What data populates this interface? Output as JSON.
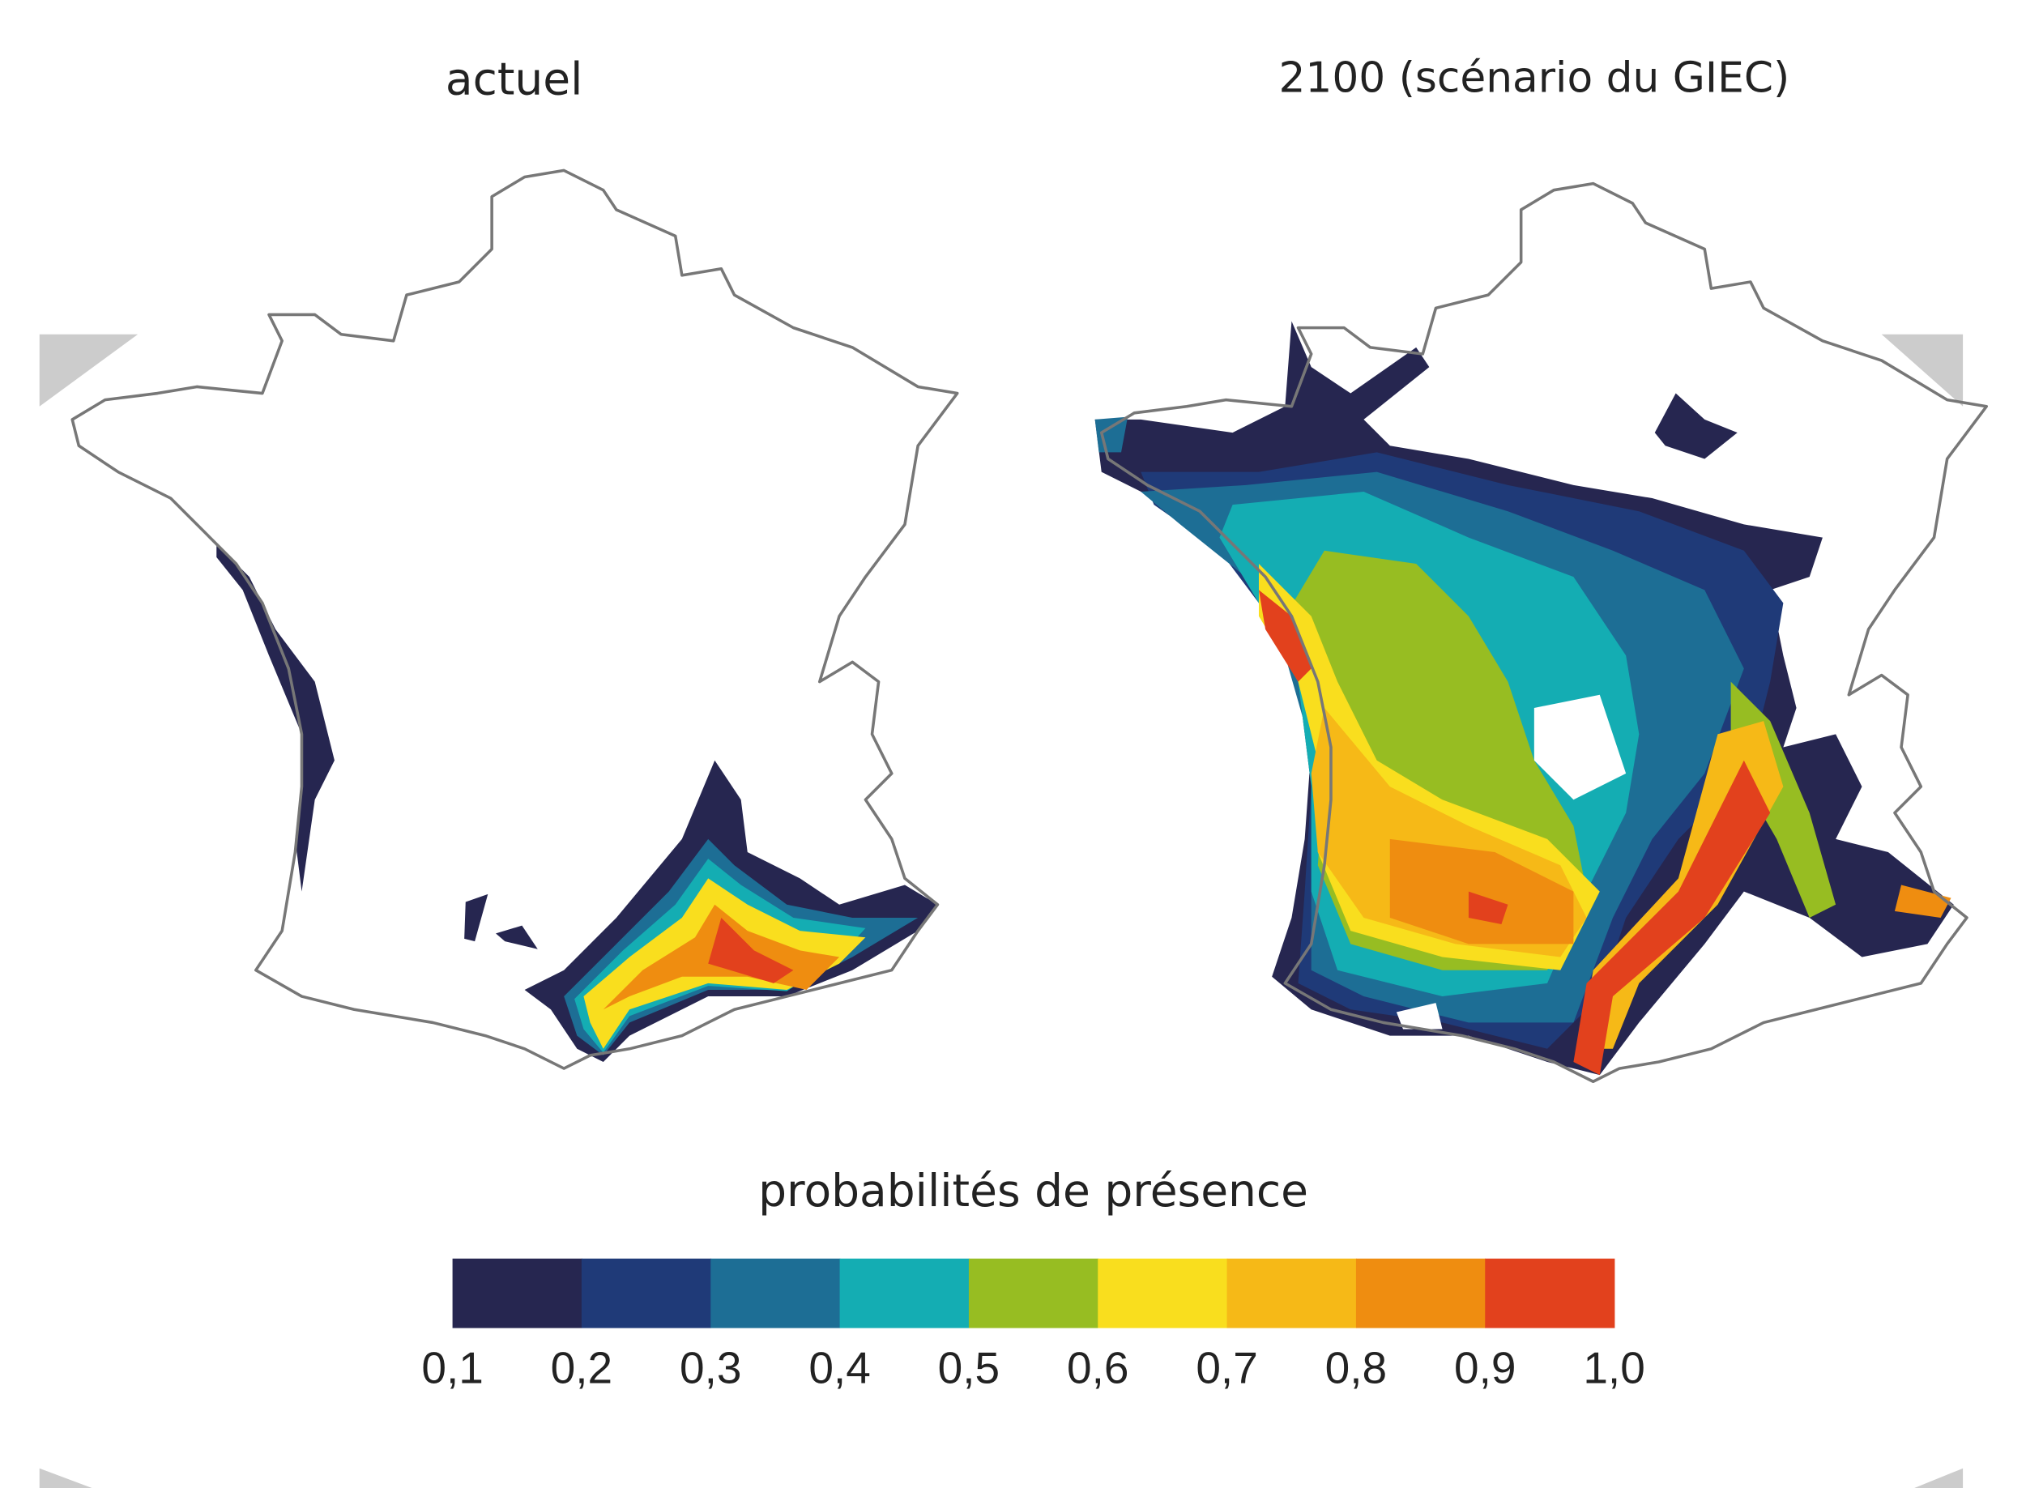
{
  "maps": [
    {
      "title": "actuel"
    },
    {
      "title": "2100 (scénario du GIEC)"
    }
  ],
  "legend": {
    "title": "probabilités de présence",
    "colors": [
      "#262650",
      "#1f3a78",
      "#1d6e95",
      "#14adb3",
      "#97bd22",
      "#f9de1e",
      "#f6b917",
      "#ef8d10",
      "#e2411d"
    ],
    "ticks": [
      "0,1",
      "0,2",
      "0,3",
      "0,4",
      "0,5",
      "0,6",
      "0,7",
      "0,8",
      "0,9",
      "1,0"
    ]
  }
}
